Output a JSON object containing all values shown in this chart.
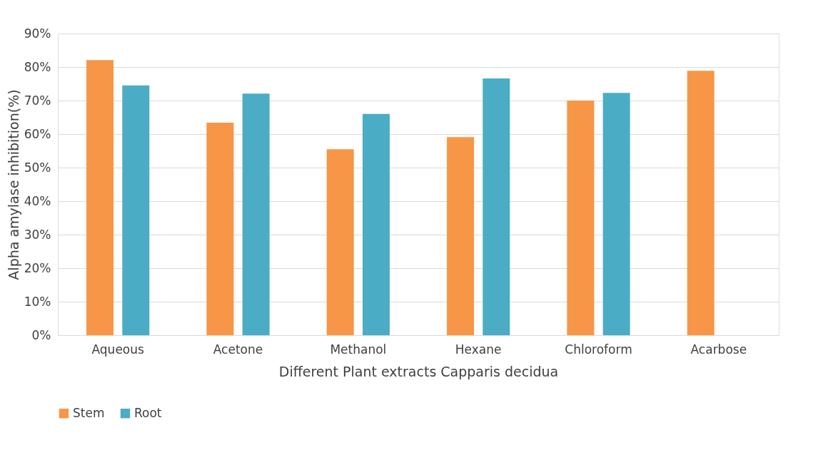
{
  "chart_data": {
    "type": "bar",
    "xlabel": "Different Plant extracts Capparis decidua",
    "ylabel": "Alpha amylase inhibition(%)",
    "categories": [
      "Aqueous",
      "Acetone",
      "Methanol",
      "Hexane",
      "Chloroform",
      "Acarbose"
    ],
    "series": [
      {
        "name": "Stem",
        "color": "#f79646",
        "values": [
          82.1,
          63.4,
          55.5,
          59.1,
          70.0,
          78.9
        ]
      },
      {
        "name": "Root",
        "color": "#4bacc6",
        "values": [
          74.5,
          72.1,
          66.0,
          76.6,
          72.3,
          null
        ]
      }
    ],
    "ylim": [
      0,
      90
    ],
    "yticks": [
      {
        "value": 0,
        "label": "0%"
      },
      {
        "value": 10,
        "label": "10%"
      },
      {
        "value": 20,
        "label": "20%"
      },
      {
        "value": 30,
        "label": "30%"
      },
      {
        "value": 40,
        "label": "40%"
      },
      {
        "value": 50,
        "label": "50%"
      },
      {
        "value": 60,
        "label": "60%"
      },
      {
        "value": 70,
        "label": "70%"
      },
      {
        "value": 80,
        "label": "80%"
      },
      {
        "value": 90,
        "label": "90%"
      }
    ],
    "grid": "y",
    "legend": "bottom"
  }
}
